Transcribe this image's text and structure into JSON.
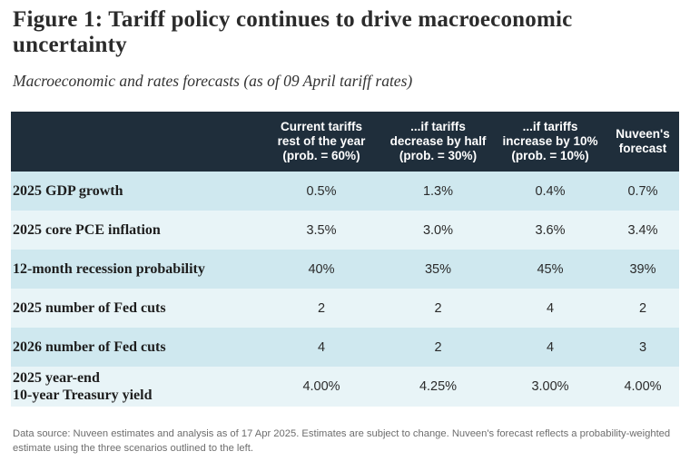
{
  "figure": {
    "title": "Figure 1: Tariff policy continues to drive macroeconomic uncertainty",
    "subtitle": "Macroeconomic and rates forecasts (as of 09 April tariff rates)"
  },
  "table": {
    "columns": [
      "",
      "Current tariffs\nrest of the year\n(prob. = 60%)",
      "...if tariffs\ndecrease by half\n(prob. = 30%)",
      "...if tariffs\nincrease by 10%\n(prob. = 10%)",
      "Nuveen's\nforecast"
    ],
    "rows": [
      {
        "label": "2025 GDP growth",
        "values": [
          "0.5%",
          "1.3%",
          "0.4%",
          "0.7%"
        ]
      },
      {
        "label": "2025 core PCE inflation",
        "values": [
          "3.5%",
          "3.0%",
          "3.6%",
          "3.4%"
        ]
      },
      {
        "label": "12-month recession probability",
        "values": [
          "40%",
          "35%",
          "45%",
          "39%"
        ]
      },
      {
        "label": "2025 number of Fed cuts",
        "values": [
          "2",
          "2",
          "4",
          "2"
        ]
      },
      {
        "label": "2026 number of Fed cuts",
        "values": [
          "4",
          "2",
          "4",
          "3"
        ]
      },
      {
        "label": "2025 year-end\n10-year Treasury yield",
        "values": [
          "4.00%",
          "4.25%",
          "3.00%",
          "4.00%"
        ]
      }
    ]
  },
  "footnote": "Data source: Nuveen estimates and analysis as of 17 Apr 2025. Estimates are subject to change. Nuveen's forecast reflects a probability-weighted estimate using the three scenarios outlined to the left.",
  "colors": {
    "header_bg": "#1f2e3b",
    "band_row": "#cfe8ef",
    "light_row": "#e8f4f7"
  }
}
